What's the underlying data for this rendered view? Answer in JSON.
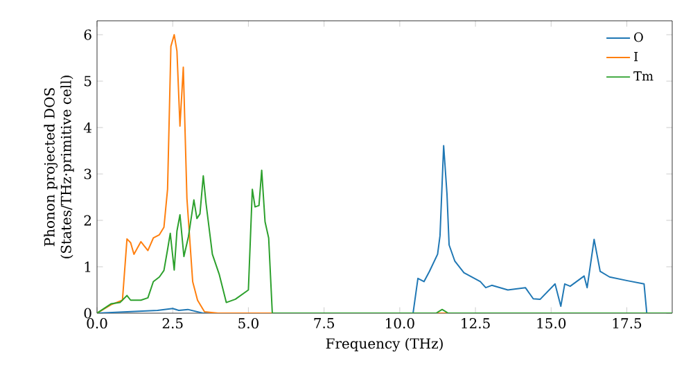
{
  "chart_data": {
    "type": "line",
    "xlabel": "Frequency (THz)",
    "ylabel": "Phonon projected DOS\n(States/THz·primitive cell)",
    "xlim": [
      0,
      19
    ],
    "ylim": [
      0,
      6.3
    ],
    "xticks": [
      {
        "value": 0,
        "label": "0.0"
      },
      {
        "value": 2.5,
        "label": "2.5"
      },
      {
        "value": 5,
        "label": "5.0"
      },
      {
        "value": 7.5,
        "label": "7.5"
      },
      {
        "value": 10,
        "label": "10.0"
      },
      {
        "value": 12.5,
        "label": "12.5"
      },
      {
        "value": 15,
        "label": "15.0"
      },
      {
        "value": 17.5,
        "label": "17.5"
      }
    ],
    "yticks": [
      0,
      1,
      2,
      3,
      4,
      5,
      6
    ],
    "legend": "top right",
    "grid": false,
    "marker": "none",
    "line_style": "solid",
    "series": [
      {
        "name": "O",
        "color": "#1f77b4",
        "x": [
          0,
          1,
          2,
          2.5,
          2.7,
          3,
          3.5,
          10.3,
          10.44,
          10.6,
          10.8,
          10.98,
          11.25,
          11.33,
          11.45,
          11.56,
          11.63,
          11.82,
          12.12,
          12.66,
          12.84,
          13.04,
          13.57,
          14.15,
          14.41,
          14.64,
          15.13,
          15.32,
          15.45,
          15.63,
          16.09,
          16.19,
          16.42,
          16.62,
          16.93,
          17.52,
          18.07,
          18.16,
          19
        ],
        "values": [
          0,
          0.03,
          0.06,
          0.1,
          0.06,
          0.08,
          0,
          0,
          0,
          0.75,
          0.68,
          0.9,
          1.27,
          1.67,
          3.61,
          2.57,
          1.47,
          1.12,
          0.87,
          0.68,
          0.55,
          0.6,
          0.5,
          0.55,
          0.31,
          0.3,
          0.63,
          0.15,
          0.63,
          0.58,
          0.8,
          0.55,
          1.59,
          0.9,
          0.78,
          0.7,
          0.63,
          0,
          0
        ]
      },
      {
        "name": "I",
        "color": "#ff7f0e",
        "x": [
          0,
          0.46,
          0.84,
          0.99,
          1.11,
          1.22,
          1.45,
          1.68,
          1.86,
          2.06,
          2.21,
          2.33,
          2.44,
          2.55,
          2.64,
          2.74,
          2.85,
          2.97,
          3.16,
          3.32,
          3.55,
          4,
          19
        ],
        "values": [
          0,
          0.18,
          0.28,
          1.6,
          1.52,
          1.27,
          1.54,
          1.35,
          1.62,
          1.69,
          1.85,
          2.67,
          5.75,
          6.0,
          5.65,
          4.03,
          5.3,
          2.47,
          0.68,
          0.28,
          0.03,
          0,
          0
        ]
      },
      {
        "name": "Tm",
        "color": "#2ca02c",
        "x": [
          0,
          0.46,
          0.76,
          0.99,
          1.11,
          1.45,
          1.68,
          1.86,
          2.06,
          2.21,
          2.33,
          2.42,
          2.55,
          2.64,
          2.74,
          2.87,
          3.02,
          3.2,
          3.3,
          3.4,
          3.51,
          3.6,
          3.81,
          4.04,
          4.27,
          4.57,
          5.0,
          5.13,
          5.22,
          5.35,
          5.44,
          5.55,
          5.67,
          5.79,
          11.2,
          11.4,
          11.6,
          19
        ],
        "values": [
          0,
          0.2,
          0.23,
          0.38,
          0.28,
          0.28,
          0.33,
          0.68,
          0.78,
          0.92,
          1.37,
          1.72,
          0.93,
          1.77,
          2.12,
          1.22,
          1.65,
          2.44,
          2.04,
          2.14,
          2.96,
          2.37,
          1.27,
          0.83,
          0.23,
          0.3,
          0.5,
          2.67,
          2.29,
          2.32,
          3.08,
          1.97,
          1.62,
          0,
          0,
          0.08,
          0,
          0
        ]
      }
    ]
  }
}
